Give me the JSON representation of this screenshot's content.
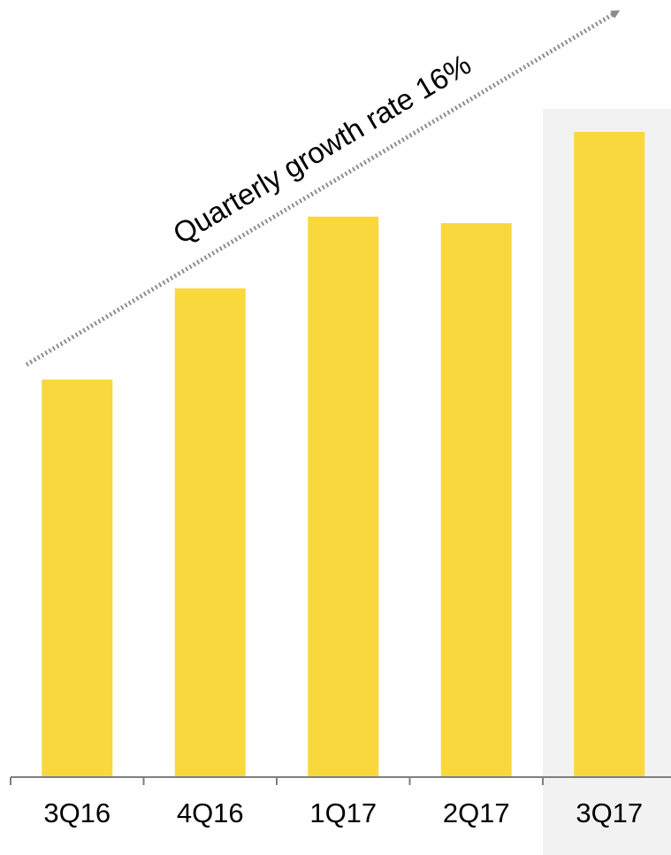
{
  "chart_data": {
    "type": "bar",
    "categories": [
      "3Q16",
      "4Q16",
      "1Q17",
      "2Q17",
      "3Q17"
    ],
    "values": [
      61,
      75,
      86,
      85,
      99
    ],
    "ylim": [
      0,
      110
    ],
    "title": "",
    "xlabel": "",
    "ylabel": "",
    "grid": false,
    "highlighted_category": "3Q17",
    "annotation": {
      "text": "Quarterly growth rate 16%"
    },
    "colors": {
      "bar": "#F9D83E",
      "highlight_band": "#F2F2F2",
      "axis": "#7F7F7F",
      "arrow": "#8C8C8C",
      "text": "#000000"
    }
  }
}
